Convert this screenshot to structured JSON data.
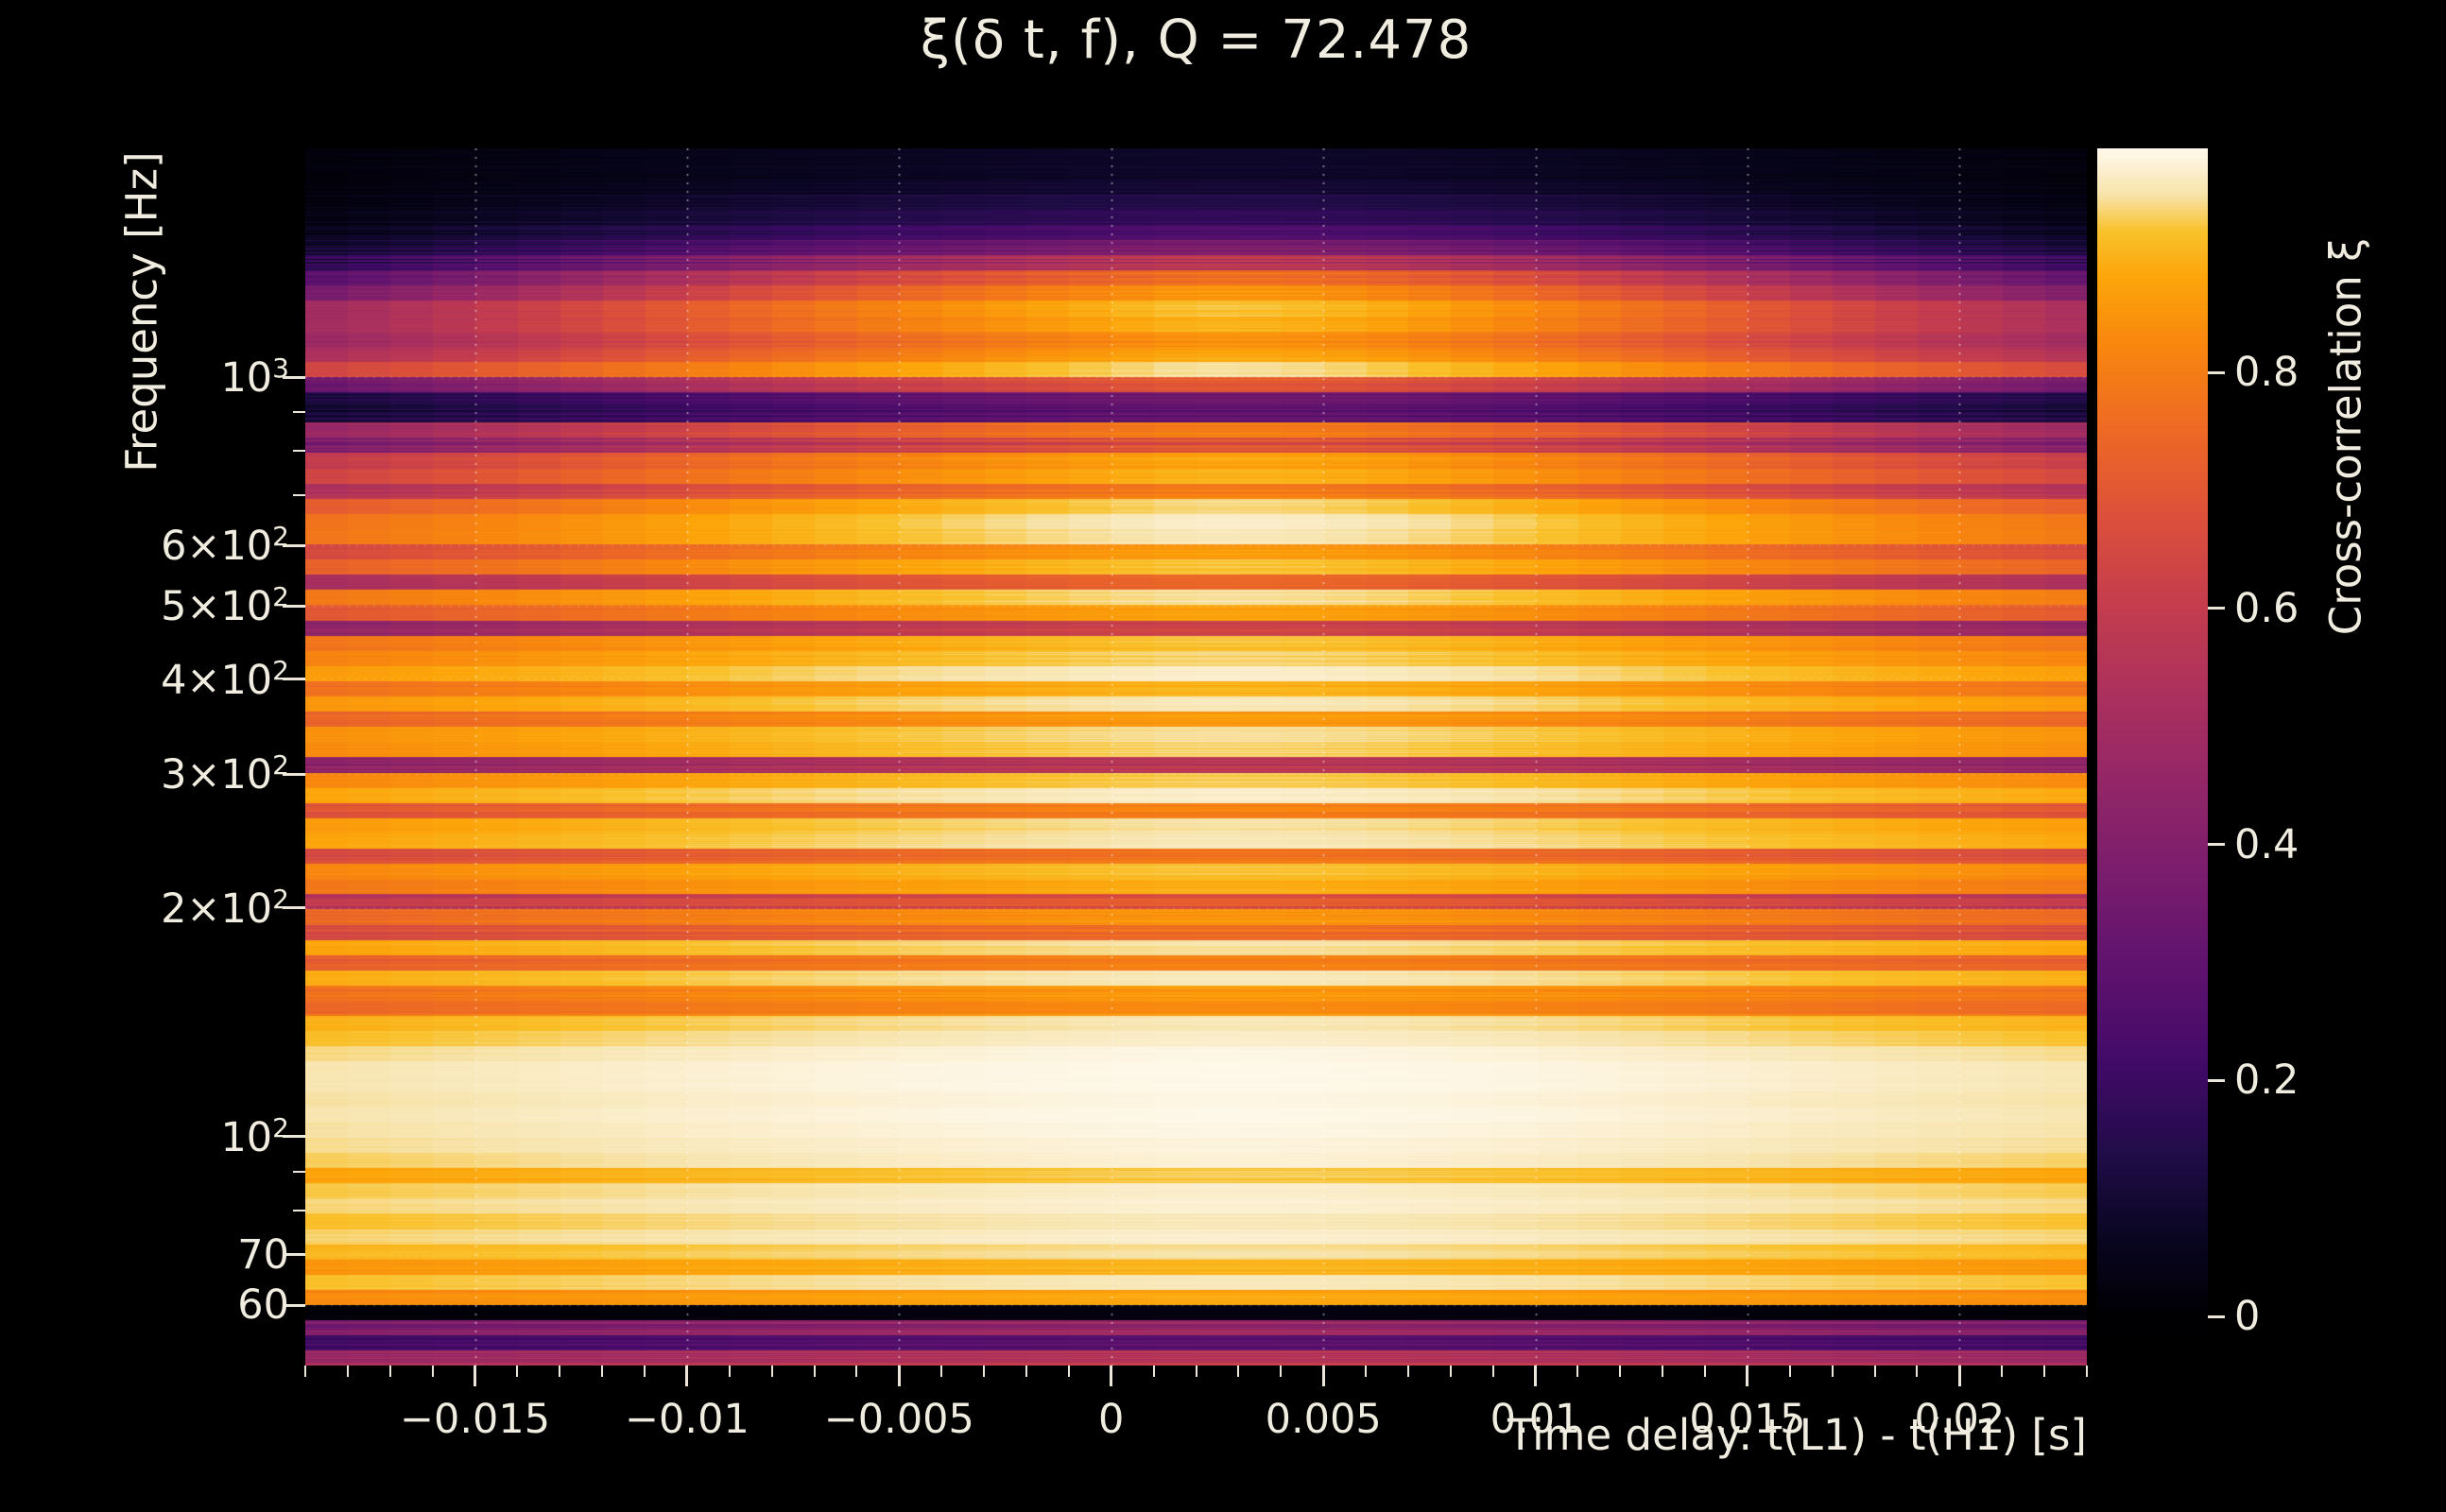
{
  "title": "ξ(δ t, f), Q = 72.478",
  "axes": {
    "xlabel": "Time delay: t(L1) - t(H1) [s]",
    "ylabel": "Frequency [Hz]",
    "xlim": [
      -0.019,
      0.023
    ],
    "ylim": [
      50,
      2000
    ],
    "y_scale": "log",
    "x_ticks": [
      {
        "v": -0.015,
        "t": "−0.015"
      },
      {
        "v": -0.01,
        "t": "−0.01"
      },
      {
        "v": -0.005,
        "t": "−0.005"
      },
      {
        "v": 0,
        "t": "0"
      },
      {
        "v": 0.005,
        "t": "0.005"
      },
      {
        "v": 0.01,
        "t": "0.01"
      },
      {
        "v": 0.015,
        "t": "0.015"
      },
      {
        "v": 0.02,
        "t": "0.02"
      }
    ],
    "x_minor_step": 0.001,
    "y_ticks": [
      {
        "v": 1000,
        "t": "10",
        "e": "3"
      },
      {
        "v": 600,
        "t": "6×10",
        "e": "2"
      },
      {
        "v": 500,
        "t": "5×10",
        "e": "2"
      },
      {
        "v": 400,
        "t": "4×10",
        "e": "2"
      },
      {
        "v": 300,
        "t": "3×10",
        "e": "2"
      },
      {
        "v": 200,
        "t": "2×10",
        "e": "2"
      },
      {
        "v": 100,
        "t": "10",
        "e": "2"
      },
      {
        "v": 70,
        "t": "70",
        "e": ""
      },
      {
        "v": 60,
        "t": "60",
        "e": ""
      }
    ],
    "y_minor_ticks": [
      900,
      800,
      700,
      90,
      80
    ]
  },
  "colorbar": {
    "label": "Cross-correlation ξ",
    "ticks": [
      0,
      0.2,
      0.4,
      0.6,
      0.8
    ],
    "vmin": -0.02,
    "vmax": 0.99
  },
  "chart_data": {
    "type": "heatmap",
    "title": "ξ(δ t, f), Q = 72.478",
    "q_value": 72.478,
    "xlabel": "Time delay: t(L1) - t(H1) [s]",
    "ylabel": "Frequency [Hz]",
    "xlim_s": [
      -0.019,
      0.023
    ],
    "ylim_hz": [
      50,
      2000
    ],
    "y_scale": "log",
    "colorbar_label": "Cross-correlation ξ",
    "colorbar_range": [
      -0.02,
      0.99
    ],
    "colormap": "inferno-like (black-purple-red-orange-cream)",
    "grid_model": "xi(row,col) = base[row] - amp[row] * (1 - col_mod[col]); rows are log-spaced in frequency from 2000 Hz (row 0, top) down to 50 Hz (row 79, bottom); cols span time delay -0.019 s to 0.023 s; 60 Hz power-line notch appears as the near-zero black row",
    "base": [
      0.08,
      0.08,
      0.1,
      0.14,
      0.18,
      0.25,
      0.38,
      0.55,
      0.78,
      0.86,
      0.92,
      0.9,
      0.84,
      0.88,
      0.95,
      0.72,
      0.35,
      0.3,
      0.8,
      0.68,
      0.88,
      0.9,
      0.8,
      0.94,
      0.97,
      0.96,
      0.86,
      0.92,
      0.76,
      0.95,
      0.88,
      0.62,
      0.92,
      0.94,
      0.97,
      0.9,
      0.96,
      0.86,
      0.95,
      0.94,
      0.56,
      0.93,
      0.97,
      0.8,
      0.95,
      0.96,
      0.78,
      0.92,
      0.9,
      0.7,
      0.85,
      0.76,
      0.95,
      0.8,
      0.96,
      0.86,
      0.84,
      0.96,
      0.97,
      0.985,
      0.99,
      0.99,
      0.985,
      0.99,
      0.985,
      0.98,
      0.975,
      0.93,
      0.97,
      0.975,
      0.96,
      0.97,
      0.95,
      0.9,
      0.96,
      0.88,
      0.03,
      0.46,
      0.3,
      0.55
    ],
    "amp": [
      0.07,
      0.07,
      0.09,
      0.13,
      0.16,
      0.22,
      0.33,
      0.45,
      0.55,
      0.55,
      0.48,
      0.45,
      0.42,
      0.4,
      0.35,
      0.42,
      0.25,
      0.22,
      0.38,
      0.35,
      0.32,
      0.3,
      0.3,
      0.26,
      0.22,
      0.2,
      0.24,
      0.22,
      0.26,
      0.18,
      0.2,
      0.22,
      0.16,
      0.14,
      0.12,
      0.15,
      0.12,
      0.14,
      0.12,
      0.12,
      0.16,
      0.12,
      0.1,
      0.14,
      0.1,
      0.09,
      0.14,
      0.11,
      0.12,
      0.14,
      0.12,
      0.12,
      0.08,
      0.1,
      0.08,
      0.1,
      0.1,
      0.07,
      0.06,
      0.05,
      0.04,
      0.04,
      0.04,
      0.04,
      0.04,
      0.04,
      0.05,
      0.06,
      0.05,
      0.04,
      0.05,
      0.04,
      0.05,
      0.06,
      0.05,
      0.06,
      0.02,
      0.1,
      0.08,
      0.1
    ],
    "col_mod": [
      0.12,
      0.22,
      0.33,
      0.44,
      0.55,
      0.65,
      0.74,
      0.82,
      0.89,
      0.95,
      1.0,
      0.99,
      0.95,
      0.88,
      0.8,
      0.7,
      0.6,
      0.49,
      0.38,
      0.28,
      0.18
    ],
    "colormap_stops": [
      [
        0.0,
        "#000003"
      ],
      [
        0.06,
        "#08051e"
      ],
      [
        0.13,
        "#1e0c45"
      ],
      [
        0.21,
        "#400a67"
      ],
      [
        0.29,
        "#5d126e"
      ],
      [
        0.37,
        "#781c6d"
      ],
      [
        0.45,
        "#932667"
      ],
      [
        0.53,
        "#ac315d"
      ],
      [
        0.61,
        "#c73e4c"
      ],
      [
        0.68,
        "#dd513a"
      ],
      [
        0.75,
        "#ed6925"
      ],
      [
        0.82,
        "#f8850f"
      ],
      [
        0.88,
        "#fca50a"
      ],
      [
        0.92,
        "#f9c22c"
      ],
      [
        0.95,
        "#f7e3a9"
      ],
      [
        0.98,
        "#fdf4de"
      ],
      [
        1.0,
        "#fffdf6"
      ]
    ],
    "grid_color": "#ffffff",
    "background": "#000000"
  }
}
